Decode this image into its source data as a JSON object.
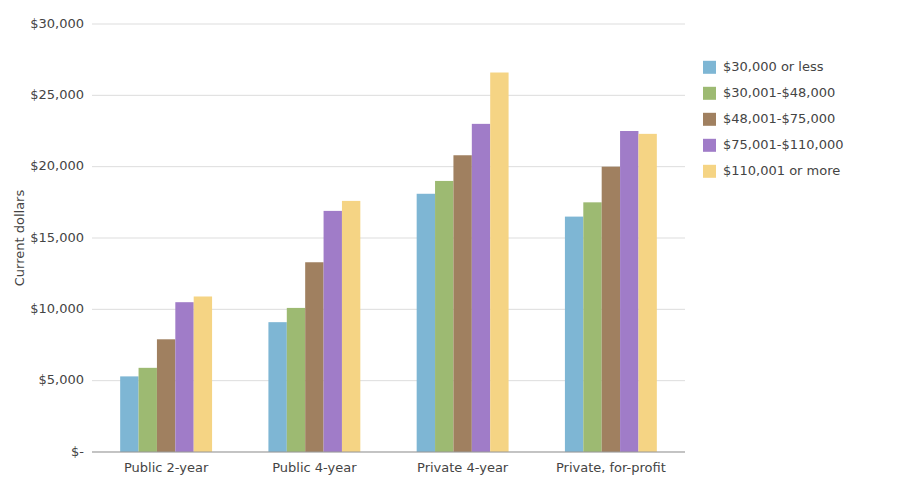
{
  "chart_data": {
    "type": "bar",
    "categories": [
      "Public 2-year",
      "Public 4-year",
      "Private 4-year",
      "Private, for-profit"
    ],
    "series": [
      {
        "name": "$30,000 or less",
        "color": "#7eb6d4",
        "values": [
          5300,
          9100,
          18100,
          16500
        ]
      },
      {
        "name": "$30,001-$48,000",
        "color": "#9dba72",
        "values": [
          5900,
          10100,
          19000,
          17500
        ]
      },
      {
        "name": "$48,001-$75,000",
        "color": "#a08060",
        "values": [
          7900,
          13300,
          20800,
          20000
        ]
      },
      {
        "name": "$75,001-$110,000",
        "color": "#a07cc8",
        "values": [
          10500,
          16900,
          23000,
          22500
        ]
      },
      {
        "name": "$110,001 or more",
        "color": "#f5d484",
        "values": [
          10900,
          17600,
          26600,
          22300
        ]
      }
    ],
    "ylabel": "Current dollars",
    "ylim": [
      0,
      30000
    ],
    "yticks": [
      {
        "value": 0,
        "label": "$-"
      },
      {
        "value": 5000,
        "label": "$5,000"
      },
      {
        "value": 10000,
        "label": "$10,000"
      },
      {
        "value": 15000,
        "label": "$15,000"
      },
      {
        "value": 20000,
        "label": "$20,000"
      },
      {
        "value": 25000,
        "label": "$25,000"
      },
      {
        "value": 30000,
        "label": "$30,000"
      }
    ],
    "grid": true,
    "legend": "right"
  }
}
